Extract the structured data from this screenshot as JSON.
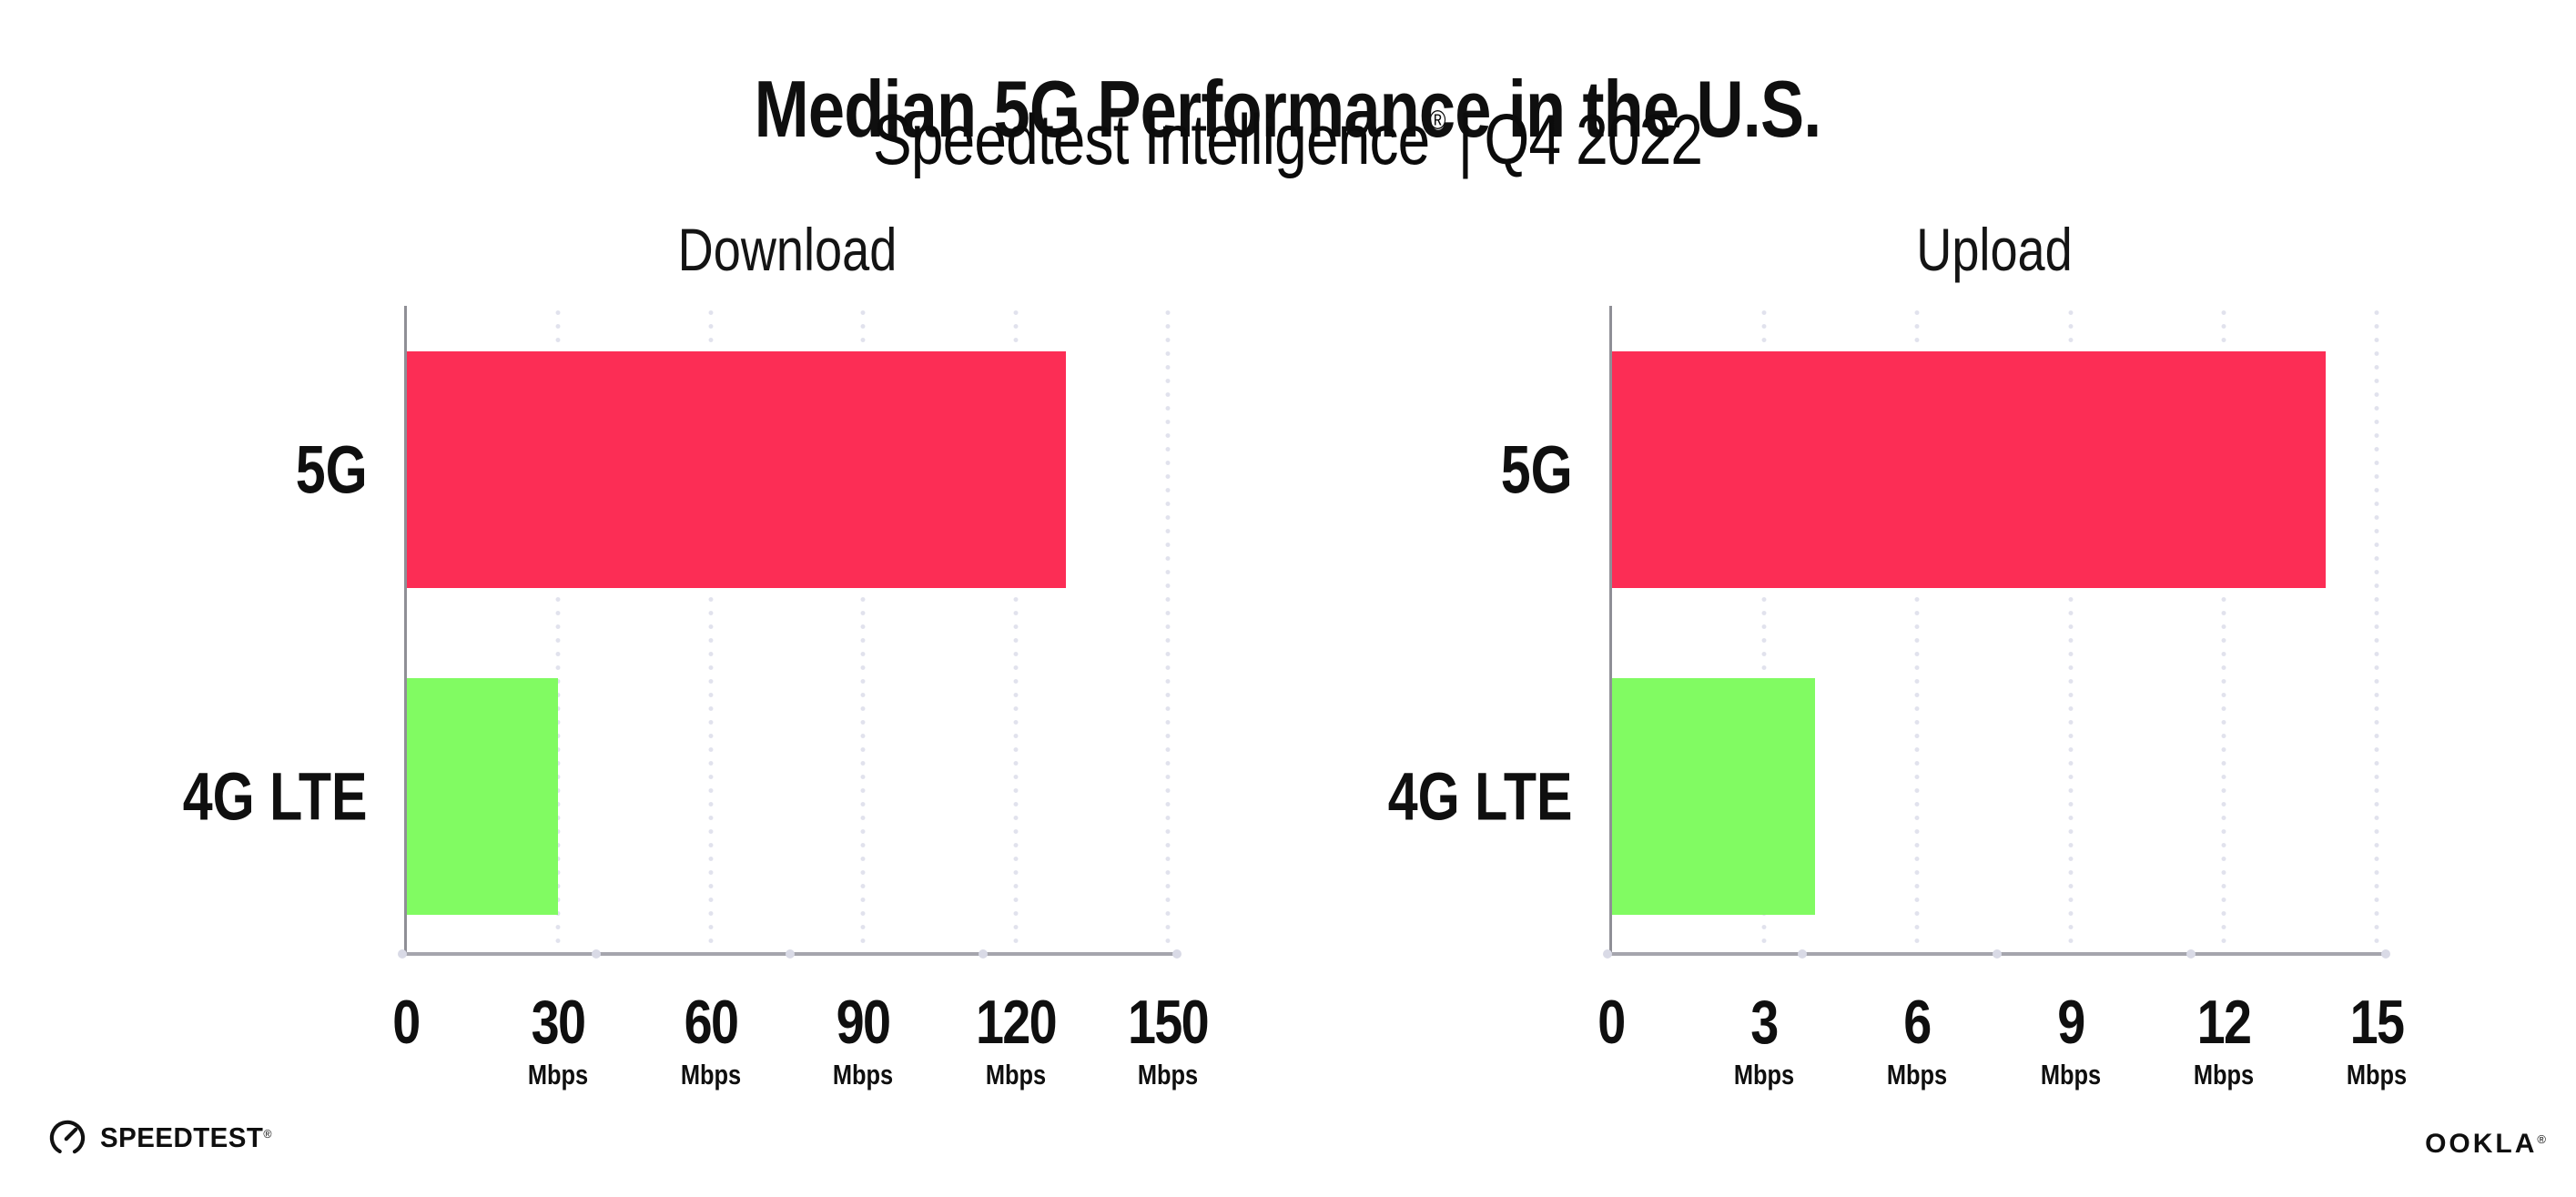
{
  "header": {
    "title": "Median 5G Performance in the U.S.",
    "subtitle_brand": "Speedtest Intelligence",
    "subtitle_mark": "®",
    "subtitle_divider": "|",
    "subtitle_period": "Q4 2022"
  },
  "chart_data": [
    {
      "type": "bar",
      "orientation": "horizontal",
      "title": "Download",
      "categories": [
        "5G",
        "4G LTE"
      ],
      "values": [
        130,
        30
      ],
      "values_estimated_from_gridlines": true,
      "unit": "Mbps",
      "xlim": [
        0,
        150
      ],
      "tick_step": 30,
      "ticks": [
        {
          "label": "0",
          "unit": ""
        },
        {
          "label": "30",
          "unit": "Mbps"
        },
        {
          "label": "60",
          "unit": "Mbps"
        },
        {
          "label": "90",
          "unit": "Mbps"
        },
        {
          "label": "120",
          "unit": "Mbps"
        },
        {
          "label": "150",
          "unit": "Mbps"
        }
      ],
      "bar_colors": [
        "#fc2d55",
        "#81fb62"
      ],
      "grid": "dotted-vertical",
      "legend": "none"
    },
    {
      "type": "bar",
      "orientation": "horizontal",
      "title": "Upload",
      "categories": [
        "5G",
        "4G LTE"
      ],
      "values": [
        14,
        4
      ],
      "values_estimated_from_gridlines": true,
      "unit": "Mbps",
      "xlim": [
        0,
        15
      ],
      "tick_step": 3,
      "ticks": [
        {
          "label": "0",
          "unit": ""
        },
        {
          "label": "3",
          "unit": "Mbps"
        },
        {
          "label": "6",
          "unit": "Mbps"
        },
        {
          "label": "9",
          "unit": "Mbps"
        },
        {
          "label": "12",
          "unit": "Mbps"
        },
        {
          "label": "15",
          "unit": "Mbps"
        }
      ],
      "bar_colors": [
        "#fc2d55",
        "#81fb62"
      ],
      "grid": "dotted-vertical",
      "legend": "none"
    }
  ],
  "colors": {
    "bar_5g": "#fc2d55",
    "bar_4g_lte": "#81fb62",
    "axis": "#a5a5ad",
    "grid_dot": "#e1e2ed",
    "text": "#0f0f0f"
  },
  "footer": {
    "speedtest_label": "SPEEDTEST",
    "speedtest_mark": "®",
    "ookla_label": "OOKLA",
    "ookla_mark": "®"
  }
}
